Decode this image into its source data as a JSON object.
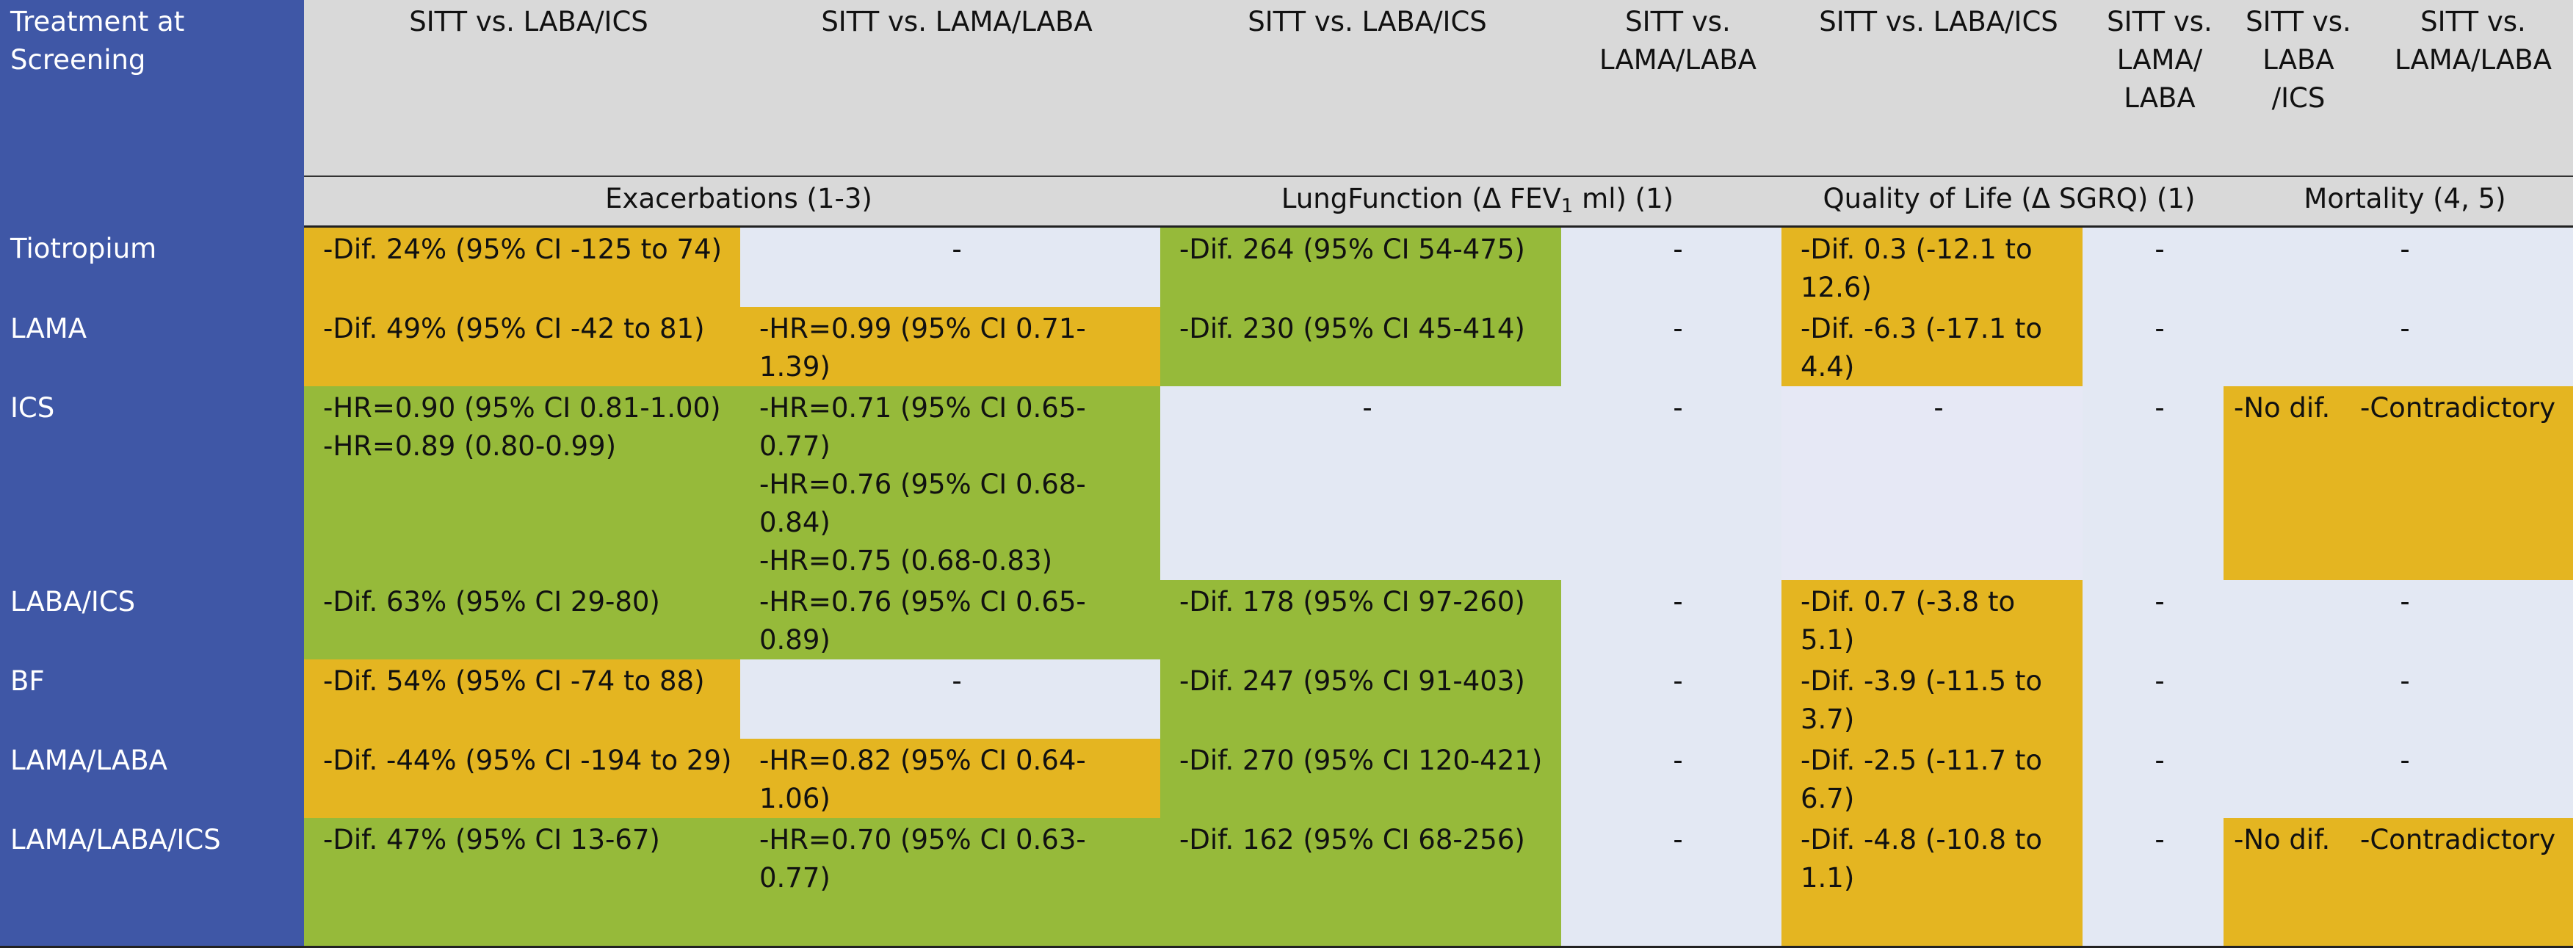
{
  "table": {
    "row_header_title": "Treatment at Screening",
    "columns": [
      "SITT vs. LABA/ICS",
      "SITT vs. LAMA/LABA",
      "SITT vs. LABA/ICS",
      "SITT vs. LAMA/LABA",
      "SITT vs. LABA/ICS",
      "SITT vs. LAMA/ LABA",
      "SITT vs. LABA /ICS",
      "SITT vs. LAMA/LABA"
    ],
    "groups": {
      "exacerbations": "Exacerbations (1-3)",
      "lung_pre": "LungFunction (Δ FEV",
      "lung_sub": "1",
      "lung_post": " ml) (1)",
      "qol": "Quality of Life (Δ SGRQ) (1)",
      "mortality": "Mortality  (4, 5)"
    },
    "rows": {
      "tiotropium": {
        "label": "Tiotropium",
        "c1": "-Dif. 24% (95% CI -125 to 74)",
        "c2": "-",
        "c3": "-Dif. 264 (95% CI 54-475)",
        "c4": "-",
        "c5": "-Dif. 0.3  (-12.1 to 12.6)",
        "c6": "-",
        "c78": "-"
      },
      "lama": {
        "label": "LAMA",
        "c1": "-Dif. 49% (95% CI -42 to 81)",
        "c2": "-HR=0.99 (95% CI 0.71-1.39)",
        "c3": "-Dif. 230 (95% CI 45-414)",
        "c4": "-",
        "c5": "-Dif. -6.3 (-17.1 to 4.4)",
        "c6": "-",
        "c78": "-"
      },
      "ics": {
        "label": "ICS",
        "c1_l1": "-HR=0.90 (95% CI 0.81-1.00)",
        "c1_l2": "-HR=0.89 (0.80-0.99)",
        "c2_l1": "-HR=0.71 (95% CI 0.65-0.77)",
        "c2_l2": "-HR=0.76 (95% CI 0.68-0.84)",
        "c2_l3": "-HR=0.75 (0.68-0.83)",
        "c3": "-",
        "c4": "-",
        "c5": "-",
        "c6": "-",
        "c7": "-No dif.",
        "c8": "-Contradictory"
      },
      "laba_ics": {
        "label": "LABA/ICS",
        "c1": "-Dif. 63% (95% CI 29-80)",
        "c2": "-HR=0.76 (95% CI 0.65-0.89)",
        "c3": "-Dif. 178 (95% CI 97-260)",
        "c4": "-",
        "c5": "-Dif. 0.7  (-3.8 to 5.1)",
        "c6": "-",
        "c78": "-"
      },
      "bf": {
        "label": "BF",
        "c1": "-Dif. 54% (95% CI -74 to 88)",
        "c2": "-",
        "c3": "-Dif. 247 (95% CI 91-403)",
        "c4": "-",
        "c5": "-Dif. -3.9 (-11.5 to 3.7)",
        "c6": "-",
        "c78": "-"
      },
      "lama_laba": {
        "label": "LAMA/LABA",
        "c1": "-Dif. -44% (95% CI -194 to 29)",
        "c2": "-HR=0.82 (95% CI 0.64-1.06)",
        "c3": "-Dif. 270 (95% CI 120-421)",
        "c4": "-",
        "c5": "-Dif. -2.5 (-11.7 to 6.7)",
        "c6": "-",
        "c78": "-"
      },
      "lama_laba_ics": {
        "label": "LAMA/LABA/ICS",
        "c1": "-Dif. 47% (95% CI 13-67)",
        "c2": "-HR=0.70 (95% CI 0.63-0.77)",
        "c3": "-Dif. 162 (95% CI 68-256)",
        "c4": "-",
        "c5": "-Dif. -4.8 (-10.8 to 1.1)",
        "c6": "-",
        "c7": "-No dif.",
        "c8": "-Contradictory"
      }
    }
  },
  "colors": {
    "row_header": "#3f57a6",
    "header": "#d9d9d9",
    "favorable_green": "#96ba3a",
    "neutral_orange": "#e4b521",
    "empty_light": "#e3e8f3"
  }
}
